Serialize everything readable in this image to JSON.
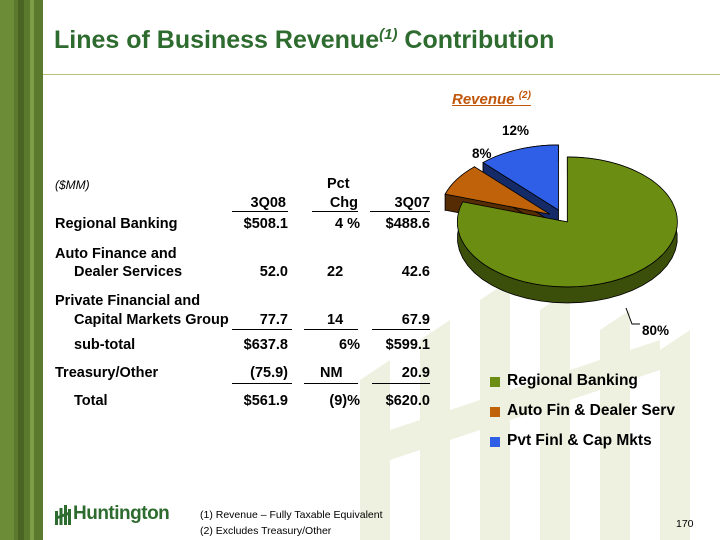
{
  "title": {
    "main": "Lines of Business Revenue",
    "sup": "(1)",
    "tail": " Contribution"
  },
  "revenue_label": {
    "text": "Revenue",
    "sup": "(2)"
  },
  "table": {
    "units": "($MM)",
    "col_header_top": "Pct",
    "col_headers": [
      "3Q08",
      "Chg",
      "3Q07"
    ],
    "rows": [
      {
        "label": "Regional Banking",
        "q308": "$508.1",
        "chg": "4 %",
        "q307": "$488.6"
      },
      {
        "label": "Auto Finance and",
        "label2": "Dealer Services",
        "q308": "52.0",
        "chg": "22",
        "q307": "42.6"
      },
      {
        "label": "Private Financial and",
        "label2": "Capital Markets Group",
        "q308": "77.7",
        "chg": "14",
        "q307": "67.9"
      },
      {
        "label": "sub-total",
        "q308": "$637.8",
        "chg": "6%",
        "q307": "$599.1"
      },
      {
        "label": "Treasury/Other",
        "q308": "(75.9)",
        "chg": "NM",
        "q307": "20.9"
      },
      {
        "label": "Total",
        "q308": "$561.9",
        "chg": "(9)%",
        "q307": "$620.0"
      }
    ]
  },
  "chart_data": {
    "type": "pie",
    "title": "Revenue (2)",
    "categories": [
      "Regional Banking",
      "Auto Fin & Dealer Serv",
      "Pvt Finl & Cap Mkts"
    ],
    "values": [
      80,
      8,
      12
    ],
    "data_labels": [
      "80%",
      "8%",
      "12%"
    ],
    "colors": [
      "#6b8e12",
      "#c0620a",
      "#2f5fe6"
    ],
    "legend_position": "bottom-right",
    "three_d": true,
    "exploded": true
  },
  "legend": [
    {
      "label": "Regional Banking",
      "color": "#6b8e12"
    },
    {
      "label": "Auto Fin & Dealer Serv",
      "color": "#c0620a"
    },
    {
      "label": "Pvt Finl & Cap Mkts",
      "color": "#2f5fe6"
    }
  ],
  "footnotes": [
    "(1)  Revenue – Fully Taxable Equivalent",
    "(2)  Excludes Treasury/Other"
  ],
  "logo_text": "Huntington",
  "page_number": "170"
}
